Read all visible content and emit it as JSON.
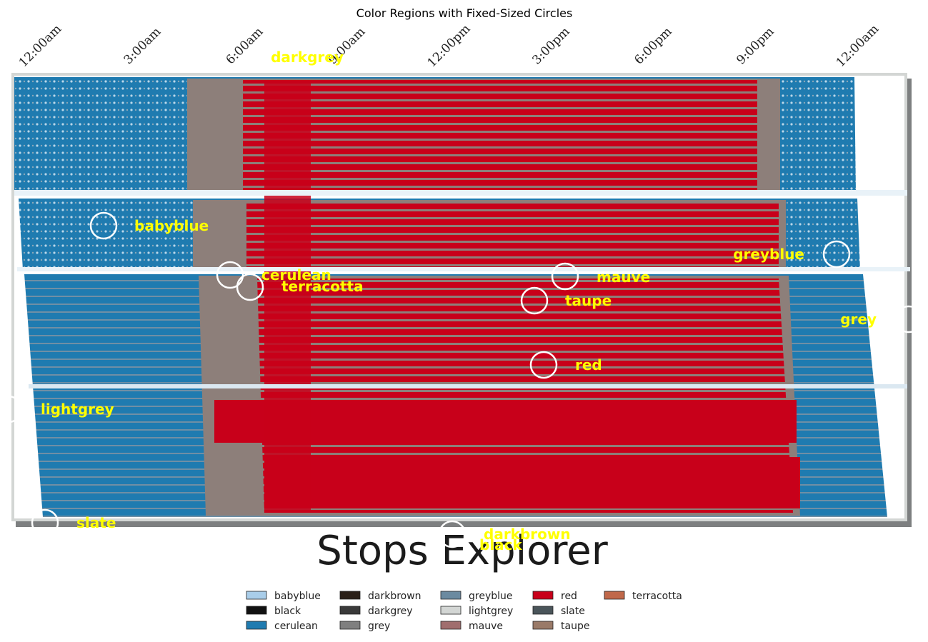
{
  "chart_data": {
    "type": "heatmap",
    "title": "Color Regions with Fixed-Sized Circles",
    "x_ticks": [
      "12:00am",
      "3:00am",
      "6:00am",
      "9:00am",
      "12:00pm",
      "3:00pm",
      "6:00pm",
      "9:00pm",
      "12:00am"
    ],
    "image_text": "Stops Explorer",
    "annotations": [
      {
        "label": "darkgrey"
      },
      {
        "label": "babyblue"
      },
      {
        "label": "greyblue"
      },
      {
        "label": "cerulean"
      },
      {
        "label": "terracotta"
      },
      {
        "label": "mauve"
      },
      {
        "label": "taupe"
      },
      {
        "label": "grey"
      },
      {
        "label": "red"
      },
      {
        "label": "lightgrey"
      },
      {
        "label": "slate"
      },
      {
        "label": "darkbrown"
      },
      {
        "label": "black"
      }
    ],
    "legend": [
      {
        "name": "babyblue",
        "color": "#a9cde9"
      },
      {
        "name": "black",
        "color": "#111111"
      },
      {
        "name": "cerulean",
        "color": "#1f7bb0"
      },
      {
        "name": "darkbrown",
        "color": "#2a1f18"
      },
      {
        "name": "darkgrey",
        "color": "#3a3a3a"
      },
      {
        "name": "grey",
        "color": "#7f7f7f"
      },
      {
        "name": "greyblue",
        "color": "#6b8aa0"
      },
      {
        "name": "lightgrey",
        "color": "#d3d6d4"
      },
      {
        "name": "mauve",
        "color": "#a06e6e"
      },
      {
        "name": "red",
        "color": "#c8001a"
      },
      {
        "name": "slate",
        "color": "#4a555a"
      },
      {
        "name": "taupe",
        "color": "#9a7a68"
      },
      {
        "name": "terracotta",
        "color": "#c0684a"
      }
    ],
    "legend_placement": "bottom-center",
    "grid": false
  }
}
